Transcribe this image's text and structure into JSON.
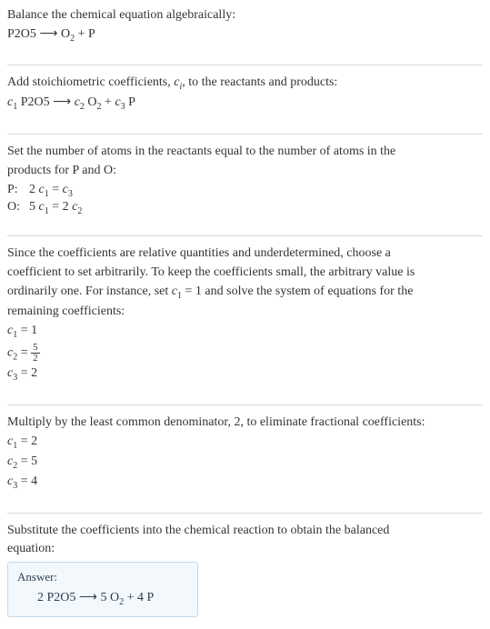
{
  "sections": {
    "intro1": "Balance the chemical equation algebraically:",
    "eq1_html": "P2O5 ⟶ O<sub class=\"sub\">2</sub> + P",
    "intro2_html": "Add stoichiometric coefficients, <span class=\"italic\">c<sub class=\"sub\">i</sub></span>, to the reactants and products:",
    "eq2_html": "<span class=\"italic\">c</span><sub class=\"sub\">1</sub> P2O5 ⟶ <span class=\"italic\">c</span><sub class=\"sub\">2</sub> O<sub class=\"sub\">2</sub> + <span class=\"italic\">c</span><sub class=\"sub\">3</sub> P",
    "intro3a": "Set the number of atoms in the reactants equal to the number of atoms in the",
    "intro3b": "products for P and O:",
    "balance_rows": [
      {
        "label": "P:",
        "eq_html": "2 <span class=\"italic\">c</span><sub class=\"sub\">1</sub> = <span class=\"italic\">c</span><sub class=\"sub\">3</sub>"
      },
      {
        "label": "O:",
        "eq_html": "5 <span class=\"italic\">c</span><sub class=\"sub\">1</sub> = 2 <span class=\"italic\">c</span><sub class=\"sub\">2</sub>"
      }
    ],
    "intro4a": "Since the coefficients are relative quantities and underdetermined, choose a",
    "intro4b": "coefficient to set arbitrarily. To keep the coefficients small, the arbitrary value is",
    "intro4c_html": "ordinarily one. For instance, set <span class=\"italic\">c</span><sub class=\"sub\">1</sub> = 1 and solve the system of equations for the",
    "intro4d": "remaining coefficients:",
    "solve1_rows_html": [
      "<span class=\"italic\">c</span><sub class=\"sub\">1</sub> = 1",
      "<span class=\"italic\">c</span><sub class=\"sub\">2</sub> = <span class=\"frac\"><span class=\"num\">5</span><span class=\"den\">2</span></span>",
      "<span class=\"italic\">c</span><sub class=\"sub\">3</sub> = 2"
    ],
    "intro5": "Multiply by the least common denominator, 2, to eliminate fractional coefficients:",
    "solve2_rows_html": [
      "<span class=\"italic\">c</span><sub class=\"sub\">1</sub> = 2",
      "<span class=\"italic\">c</span><sub class=\"sub\">2</sub> = 5",
      "<span class=\"italic\">c</span><sub class=\"sub\">3</sub> = 4"
    ],
    "intro6a": "Substitute the coefficients into the chemical reaction to obtain the balanced",
    "intro6b": "equation:",
    "answer_label": "Answer:",
    "answer_eq_html": "2 P2O5 ⟶ 5 O<sub class=\"sub\">2</sub> + 4 P"
  },
  "colors": {
    "text": "#333333",
    "rule": "#d9d9d9",
    "box_border": "#c5d9e8",
    "box_bg": "#f2f8fc"
  }
}
